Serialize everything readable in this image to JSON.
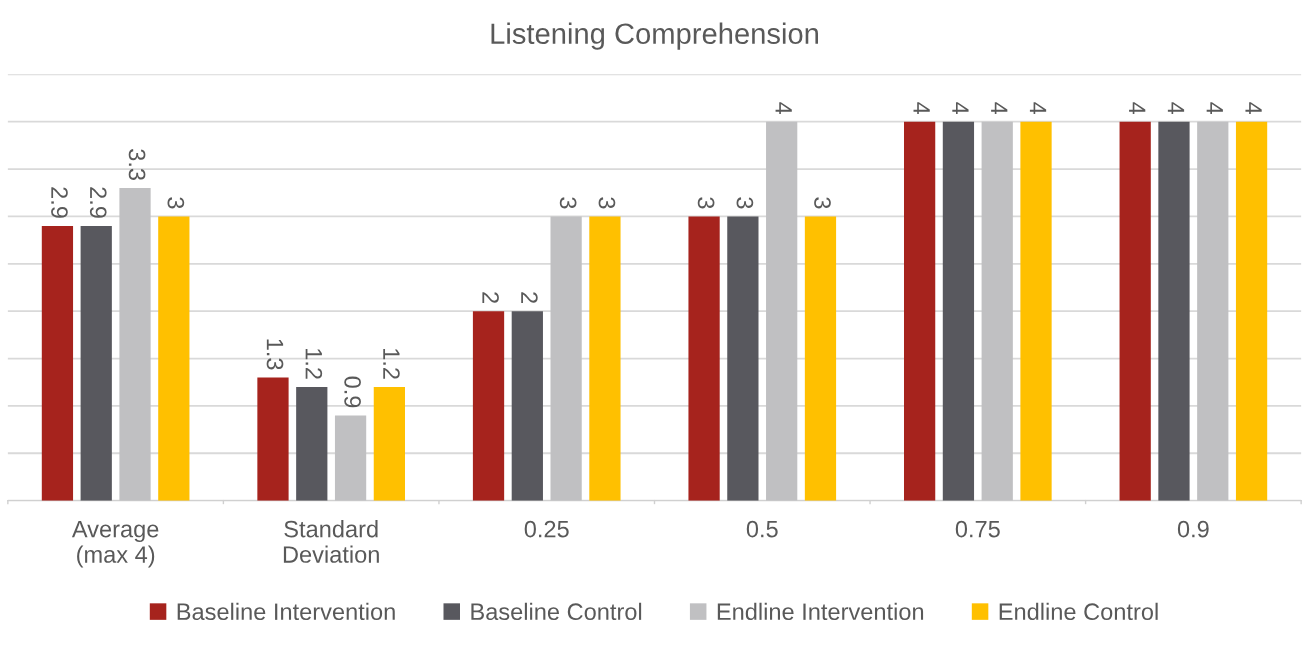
{
  "chart_data": {
    "type": "bar",
    "title": "Listening Comprehension",
    "categories": [
      "Average\n(max 4)",
      "Standard\nDeviation",
      "0.25",
      "0.5",
      "0.75",
      "0.9"
    ],
    "series": [
      {
        "name": "Baseline Intervention",
        "color": "#a6231d",
        "values": [
          2.9,
          1.3,
          2,
          3,
          4,
          4
        ]
      },
      {
        "name": "Baseline Control",
        "color": "#58585e",
        "values": [
          2.9,
          1.2,
          2,
          3,
          4,
          4
        ]
      },
      {
        "name": "Endline Intervention",
        "color": "#c0c0c2",
        "values": [
          3.3,
          0.9,
          3,
          4,
          4,
          4
        ]
      },
      {
        "name": "Endline Control",
        "color": "#ffc000",
        "values": [
          3,
          1.2,
          3,
          3,
          4,
          4
        ]
      }
    ],
    "ylim": [
      0,
      4.5
    ],
    "yticks": [
      {
        "value": 0,
        "label": null
      },
      {
        "value": 0.5,
        "label": null
      },
      {
        "value": 1,
        "label": null
      },
      {
        "value": 1.5,
        "label": null
      },
      {
        "value": 2,
        "label": null
      },
      {
        "value": 2.5,
        "label": null
      },
      {
        "value": 3,
        "label": null
      },
      {
        "value": 3.5,
        "label": null
      },
      {
        "value": 4,
        "label": null
      },
      {
        "value": 4.5,
        "label": null
      }
    ],
    "tick_labels": "x",
    "grid": "y",
    "legend": "bottom",
    "data_labels": true
  }
}
